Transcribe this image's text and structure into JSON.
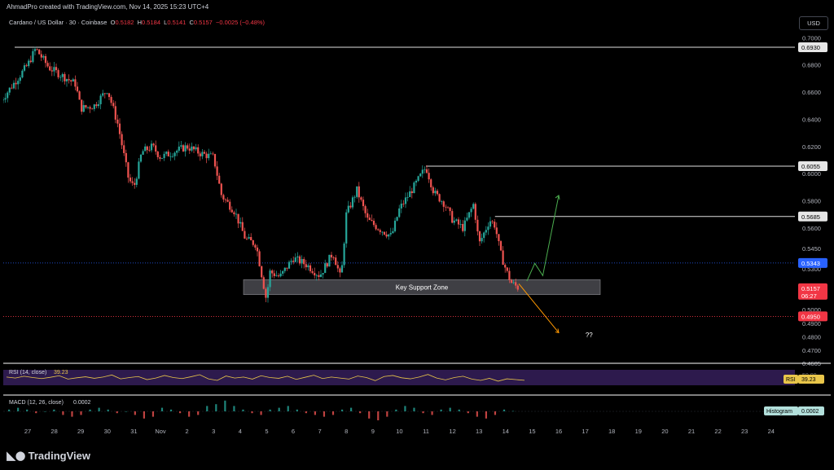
{
  "header": {
    "caption": "AhmadPro created with TradingView.com, Nov 14, 2025 15:23 UTC+4"
  },
  "legend": {
    "symbol": "Cardano / US Dollar · 30 · Coinbase",
    "open_label": "O",
    "open": "0.5182",
    "high_label": "H",
    "high": "0.5184",
    "low_label": "L",
    "low": "0.5141",
    "close_label": "C",
    "close": "0.5157",
    "change": "−0.0025 (−0.48%)"
  },
  "currency_button": "USD",
  "branding": {
    "name": "TradingView"
  },
  "colors": {
    "up": "#26a69a",
    "down": "#ef5350",
    "rsi_band": "#2d1a4d",
    "rsi_line": "#e9c64a",
    "projection_up": "#4caf50",
    "projection_down": "#ff9800"
  },
  "chart_data": [
    {
      "type": "candlestick",
      "title": "Cardano / US Dollar",
      "ylim": [
        0.4605,
        0.705
      ],
      "price_axis_ticks": [
        "0.7000",
        "0.6800",
        "0.6600",
        "0.6400",
        "0.6200",
        "0.6000",
        "0.5800",
        "0.5600",
        "0.5450",
        "0.5300",
        "0.5000",
        "0.4900",
        "0.4800",
        "0.4700",
        "0.4605"
      ],
      "date_axis_ticks": [
        "27",
        "28",
        "29",
        "30",
        "31",
        "Nov",
        "2",
        "3",
        "4",
        "5",
        "6",
        "7",
        "8",
        "9",
        "10",
        "11",
        "12",
        "13",
        "14",
        "15",
        "16",
        "17",
        "18",
        "19",
        "20",
        "21",
        "22",
        "23",
        "24"
      ],
      "price_path": [
        {
          "date": "26",
          "price": 0.654
        },
        {
          "date": "27",
          "price": 0.68
        },
        {
          "date": "27.3",
          "price": 0.692
        },
        {
          "date": "27.8",
          "price": 0.678
        },
        {
          "date": "28.3",
          "price": 0.672
        },
        {
          "date": "28.8",
          "price": 0.666
        },
        {
          "date": "29",
          "price": 0.648
        },
        {
          "date": "29.5",
          "price": 0.65
        },
        {
          "date": "30",
          "price": 0.662
        },
        {
          "date": "30.4",
          "price": 0.636
        },
        {
          "date": "30.8",
          "price": 0.596
        },
        {
          "date": "31",
          "price": 0.59
        },
        {
          "date": "31.3",
          "price": 0.616
        },
        {
          "date": "31.7",
          "price": 0.62
        },
        {
          "date": "Nov 1",
          "price": 0.612
        },
        {
          "date": "2",
          "price": 0.62
        },
        {
          "date": "2.5",
          "price": 0.615
        },
        {
          "date": "3",
          "price": 0.612
        },
        {
          "date": "3.3",
          "price": 0.584
        },
        {
          "date": "3.8",
          "price": 0.572
        },
        {
          "date": "4.2",
          "price": 0.552
        },
        {
          "date": "4.6",
          "price": 0.548
        },
        {
          "date": "5",
          "price": 0.506
        },
        {
          "date": "5.1",
          "price": 0.528
        },
        {
          "date": "5.5",
          "price": 0.524
        },
        {
          "date": "6",
          "price": 0.538
        },
        {
          "date": "6.5",
          "price": 0.533
        },
        {
          "date": "7",
          "price": 0.525
        },
        {
          "date": "7.5",
          "price": 0.542
        },
        {
          "date": "7.8",
          "price": 0.522
        },
        {
          "date": "8",
          "price": 0.57
        },
        {
          "date": "8.4",
          "price": 0.588
        },
        {
          "date": "8.8",
          "price": 0.566
        },
        {
          "date": "9.2",
          "price": 0.56
        },
        {
          "date": "9.7",
          "price": 0.554
        },
        {
          "date": "10",
          "price": 0.574
        },
        {
          "date": "10.6",
          "price": 0.592
        },
        {
          "date": "11",
          "price": 0.605
        },
        {
          "date": "11.3",
          "price": 0.586
        },
        {
          "date": "11.7",
          "price": 0.578
        },
        {
          "date": "12",
          "price": 0.566
        },
        {
          "date": "12.4",
          "price": 0.56
        },
        {
          "date": "12.8",
          "price": 0.578
        },
        {
          "date": "13",
          "price": 0.548
        },
        {
          "date": "13.4",
          "price": 0.566
        },
        {
          "date": "13.6",
          "price": 0.562
        },
        {
          "date": "13.8",
          "price": 0.542
        },
        {
          "date": "14",
          "price": 0.53
        },
        {
          "date": "14.2",
          "price": 0.52
        },
        {
          "date": "14.5",
          "price": 0.5157
        }
      ],
      "horizontal_levels": [
        {
          "price": 0.693,
          "label": "0.6930"
        },
        {
          "price": 0.6055,
          "label": "0.6055"
        },
        {
          "price": 0.5685,
          "label": "0.5685"
        }
      ],
      "price_tags": [
        {
          "price": 0.5343,
          "label": "0.5343",
          "color": "#2962ff"
        },
        {
          "price": 0.5157,
          "label": "0.5157",
          "sublabel": "06:27",
          "color": "#f23645"
        },
        {
          "price": 0.495,
          "label": "0.4950",
          "color": "#f23645"
        }
      ],
      "dotted_lines": [
        {
          "price": 0.5343,
          "color": "#2962ff"
        },
        {
          "price": 0.495,
          "color": "#f23645"
        }
      ],
      "annotations": [
        {
          "text": "Key Support Zone",
          "type": "zone",
          "price_top": 0.522,
          "price_bottom": 0.511,
          "from": "5",
          "to": "17.5"
        },
        {
          "text": "??",
          "date": "16.7",
          "price": 0.482
        }
      ],
      "projection_up": [
        {
          "date": "14.8",
          "price": 0.521
        },
        {
          "date": "15.1",
          "price": 0.534
        },
        {
          "date": "15.4",
          "price": 0.525
        },
        {
          "date": "16",
          "price": 0.584
        }
      ],
      "projection_down": [
        {
          "date": "14.5",
          "price": 0.519
        },
        {
          "date": "16",
          "price": 0.483
        }
      ]
    },
    {
      "type": "line",
      "title": "RSI (14, close)",
      "current_value": "39.23",
      "axis_label": "RSI",
      "band_label": "50.00",
      "ylim": [
        20,
        80
      ],
      "values": [
        52,
        48,
        55,
        50,
        46,
        51,
        57,
        44,
        49,
        53,
        47,
        52,
        60,
        45,
        50,
        54,
        42,
        48,
        58,
        50,
        46,
        53,
        61,
        45,
        39,
        56,
        48,
        52,
        44,
        57,
        50,
        47,
        55,
        43,
        51,
        59,
        46,
        52,
        48,
        44,
        56,
        50,
        38,
        54,
        58,
        49,
        45,
        52,
        62,
        48,
        41,
        50,
        55,
        44,
        39,
        47,
        36,
        45,
        42,
        39.23
      ]
    },
    {
      "type": "bar",
      "title": "MACD (12, 26, close)",
      "current_value": "0.0002",
      "axis_label": "Histogram",
      "values": [
        0.001,
        0.002,
        0.001,
        -0.001,
        0,
        0.001,
        -0.002,
        -0.003,
        -0.002,
        0.001,
        0.002,
        0.001,
        -0.001,
        0,
        -0.002,
        -0.004,
        -0.003,
        0.002,
        0.001,
        -0.001,
        -0.003,
        -0.002,
        0.003,
        0.004,
        0.006,
        0.003,
        0.001,
        -0.001,
        -0.002,
        0.001,
        0.002,
        0.003,
        0.001,
        -0.001,
        -0.002,
        -0.003,
        -0.002,
        0.001,
        0.002,
        -0.001,
        -0.004,
        -0.005,
        -0.003,
        0.001,
        0.003,
        0.002,
        -0.001,
        -0.002,
        0.001,
        0.002,
        0.001,
        -0.001,
        -0.003,
        -0.004,
        -0.002,
        0.001,
        0.0002
      ]
    }
  ]
}
